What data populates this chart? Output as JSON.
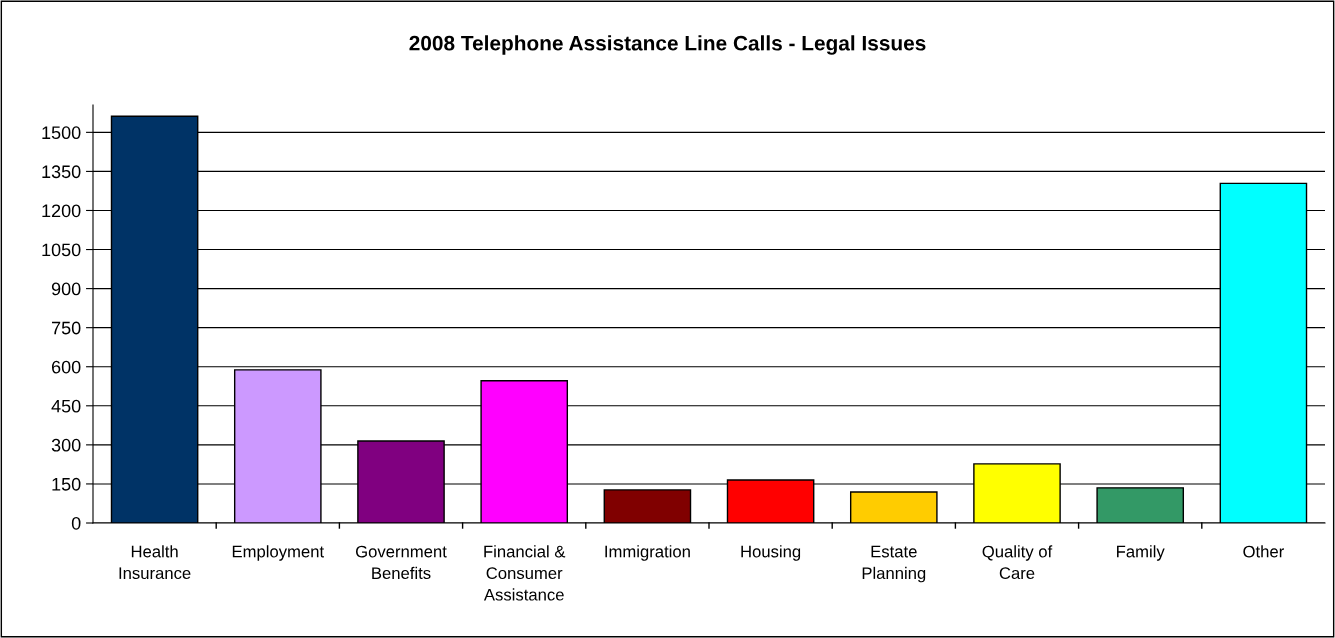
{
  "chart_data": {
    "type": "bar",
    "title": "2008 Telephone Assistance Line Calls - Legal Issues",
    "categories": [
      "Health\nInsurance",
      "Employment",
      "Government\nBenefits",
      "Financial &\nConsumer\nAssistance",
      "Immigration",
      "Housing",
      "Estate\nPlanning",
      "Quality of\nCare",
      "Family",
      "Other"
    ],
    "values": [
      1562,
      588,
      315,
      546,
      127,
      165,
      119,
      227,
      135,
      1304
    ],
    "colors": [
      "#003366",
      "#cc99ff",
      "#800080",
      "#ff00ff",
      "#800000",
      "#ff0000",
      "#ffcc00",
      "#ffff00",
      "#339966",
      "#00ffff"
    ],
    "ylim": [
      0,
      1605
    ],
    "yticks": [
      0,
      150,
      300,
      450,
      600,
      750,
      900,
      1050,
      1200,
      1350,
      1500
    ],
    "grid": "y",
    "legend": false
  }
}
